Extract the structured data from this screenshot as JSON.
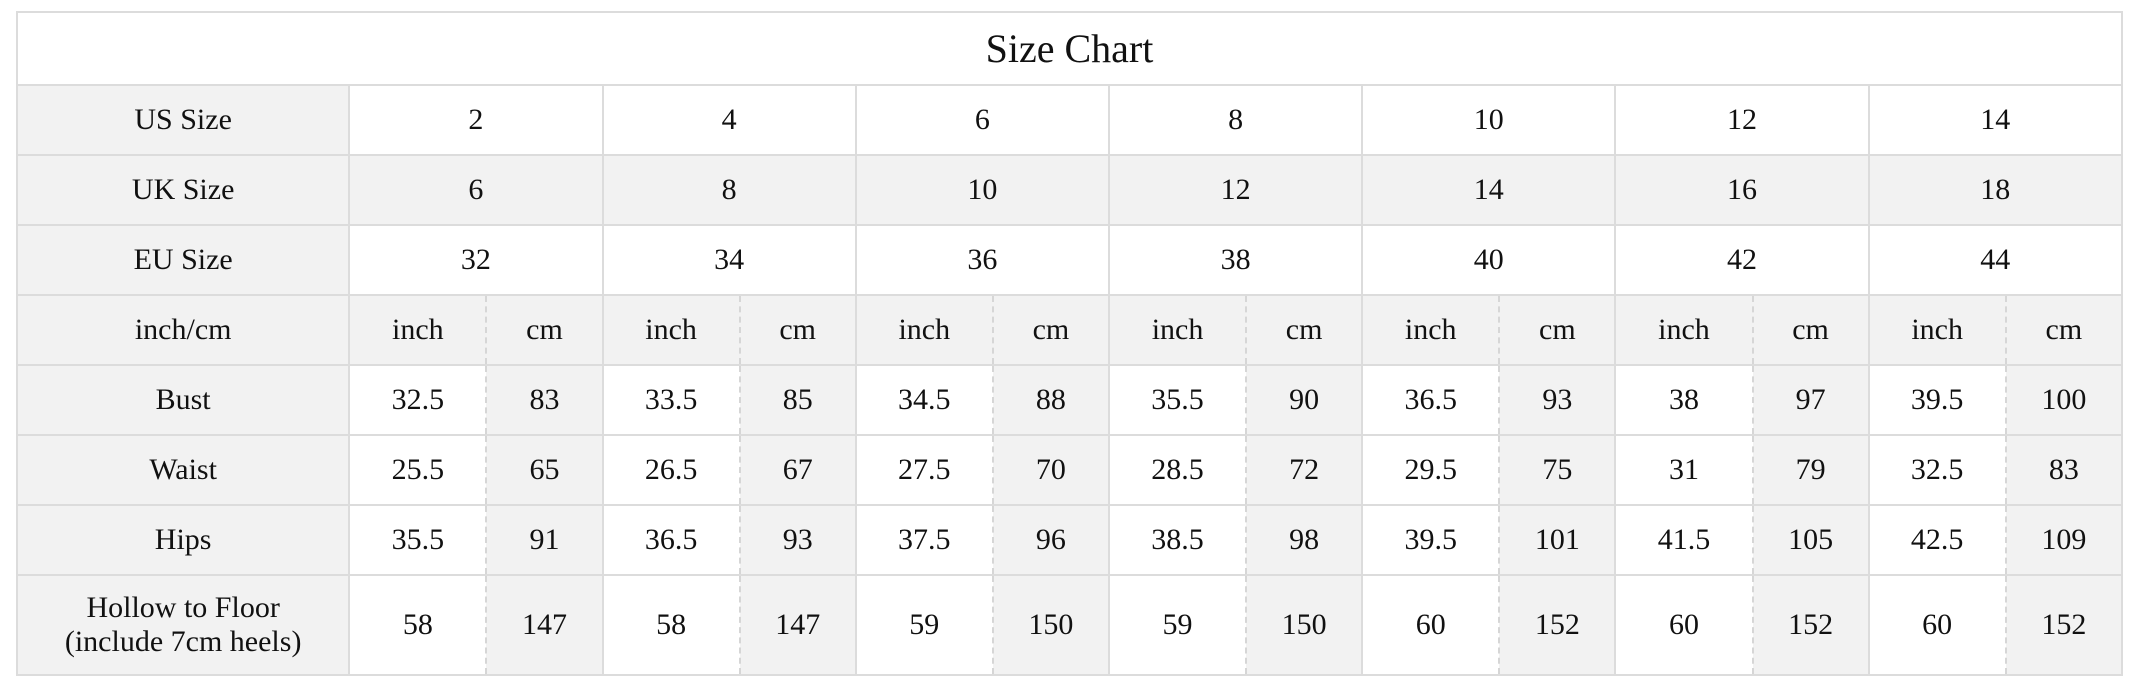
{
  "title": "Size Chart",
  "size_rows": [
    {
      "label": "US Size",
      "values": [
        "2",
        "4",
        "6",
        "8",
        "10",
        "12",
        "14"
      ],
      "bg": "w"
    },
    {
      "label": "UK Size",
      "values": [
        "6",
        "8",
        "10",
        "12",
        "14",
        "16",
        "18"
      ],
      "bg": "g"
    },
    {
      "label": "EU Size",
      "values": [
        "32",
        "34",
        "36",
        "38",
        "40",
        "42",
        "44"
      ],
      "bg": "w"
    }
  ],
  "unit_row": {
    "label": "inch/cm",
    "inch": "inch",
    "cm": "cm"
  },
  "measure_rows": [
    {
      "label": "Bust",
      "inch": [
        "32.5",
        "33.5",
        "34.5",
        "35.5",
        "36.5",
        "38",
        "39.5"
      ],
      "cm": [
        "83",
        "85",
        "88",
        "90",
        "93",
        "97",
        "100"
      ]
    },
    {
      "label": "Waist",
      "inch": [
        "25.5",
        "26.5",
        "27.5",
        "28.5",
        "29.5",
        "31",
        "32.5"
      ],
      "cm": [
        "65",
        "67",
        "70",
        "72",
        "75",
        "79",
        "83"
      ]
    },
    {
      "label": "Hips",
      "inch": [
        "35.5",
        "36.5",
        "37.5",
        "38.5",
        "39.5",
        "41.5",
        "42.5"
      ],
      "cm": [
        "91",
        "93",
        "96",
        "98",
        "101",
        "105",
        "109"
      ]
    },
    {
      "label": "Hollow to Floor",
      "sublabel": "(include 7cm heels)",
      "inch": [
        "58",
        "58",
        "59",
        "59",
        "60",
        "60",
        "60"
      ],
      "cm": [
        "147",
        "147",
        "150",
        "150",
        "152",
        "152",
        "152"
      ]
    }
  ],
  "colors": {
    "label_bg": "#f2f2f2",
    "border": "#dcdcdc"
  }
}
